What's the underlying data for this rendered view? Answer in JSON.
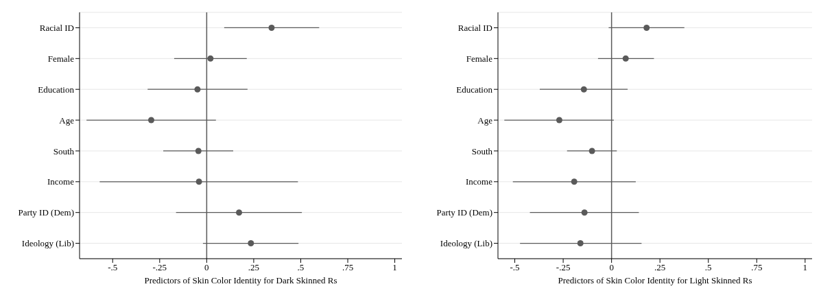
{
  "chart_data": [
    {
      "type": "scatter",
      "orientation": "horizontal",
      "xlabel": "Predictors of Skin Color Identity for Dark Skinned Rs",
      "categories": [
        "Racial ID",
        "Female",
        "Education",
        "Age",
        "South",
        "Income",
        "Party ID (Dem)",
        "Ideology (Lib)"
      ],
      "values": [
        0.345,
        0.02,
        -0.049,
        -0.295,
        -0.044,
        -0.041,
        0.172,
        0.235
      ],
      "xticks": [
        {
          "value": -0.5,
          "label": "-.5"
        },
        {
          "value": -0.25,
          "label": "-.25"
        },
        {
          "value": 0,
          "label": "0"
        },
        {
          "value": 0.25,
          "label": ".25"
        },
        {
          "value": 0.5,
          "label": ".5"
        },
        {
          "value": 0.75,
          "label": ".75"
        },
        {
          "value": 1,
          "label": "1"
        }
      ],
      "errors": [
        [
          0.093,
          0.598
        ],
        [
          -0.173,
          0.213
        ],
        [
          -0.314,
          0.217
        ],
        [
          -0.639,
          0.049
        ],
        [
          -0.231,
          0.141
        ],
        [
          -0.569,
          0.485
        ],
        [
          -0.163,
          0.506
        ],
        [
          -0.02,
          0.488
        ]
      ],
      "color": "#5a5a5a",
      "marker": "circle",
      "xlim": [
        -0.676,
        1.038
      ],
      "grid": "y",
      "ref_lines": [
        {
          "axis": "x",
          "value": 0,
          "color": "#5a5a5a"
        }
      ]
    },
    {
      "type": "scatter",
      "orientation": "horizontal",
      "xlabel": "Predictors of Skin Color Identity for Light Skinned Rs",
      "categories": [
        "Racial ID",
        "Female",
        "Education",
        "Age",
        "South",
        "Income",
        "Party ID (Dem)",
        "Ideology (Lib)"
      ],
      "values": [
        0.181,
        0.073,
        -0.143,
        -0.27,
        -0.101,
        -0.193,
        -0.14,
        -0.161
      ],
      "xticks": [
        {
          "value": -0.5,
          "label": "-.5"
        },
        {
          "value": -0.25,
          "label": "-.25"
        },
        {
          "value": 0,
          "label": "0"
        },
        {
          "value": 0.25,
          "label": ".25"
        },
        {
          "value": 0.5,
          "label": ".5"
        },
        {
          "value": 0.75,
          "label": ".75"
        },
        {
          "value": 1,
          "label": "1"
        }
      ],
      "errors": [
        [
          -0.015,
          0.376
        ],
        [
          -0.07,
          0.219
        ],
        [
          -0.371,
          0.083
        ],
        [
          -0.554,
          0.012
        ],
        [
          -0.23,
          0.027
        ],
        [
          -0.51,
          0.125
        ],
        [
          -0.422,
          0.141
        ],
        [
          -0.473,
          0.155
        ]
      ],
      "color": "#5a5a5a",
      "marker": "circle",
      "xlim": [
        -0.587,
        1.036
      ],
      "grid": "y",
      "ref_lines": [
        {
          "axis": "x",
          "value": 0,
          "color": "#5a5a5a"
        }
      ]
    }
  ]
}
